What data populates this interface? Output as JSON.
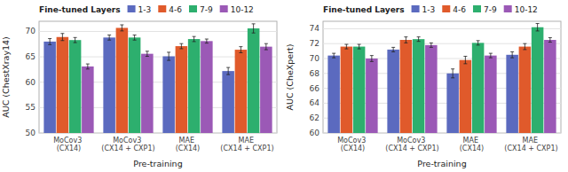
{
  "chart_data": [
    {
      "type": "bar",
      "xlabel": "Pre-training",
      "ylabel": "AUC (ChestXray14)",
      "categories": [
        "MoCov3 (CX14)",
        "MoCov3 (CX14 + CXP1)",
        "MAE (CX14)",
        "MAE (CX14 + CXP1)"
      ],
      "series": [
        {
          "name": "1-3",
          "color": "#5b6abf",
          "values": [
            68.0,
            68.8,
            65.1,
            62.2
          ],
          "errors": [
            0.6,
            0.5,
            0.8,
            0.7
          ]
        },
        {
          "name": "4-6",
          "color": "#e05a2b",
          "values": [
            68.9,
            70.7,
            67.1,
            66.4
          ],
          "errors": [
            0.7,
            0.6,
            0.5,
            0.6
          ]
        },
        {
          "name": "7-9",
          "color": "#2daf6e",
          "values": [
            68.3,
            68.8,
            68.5,
            70.6
          ],
          "errors": [
            0.5,
            0.5,
            0.5,
            0.9
          ]
        },
        {
          "name": "10-12",
          "color": "#9b59b6",
          "values": [
            63.1,
            65.6,
            68.1,
            67.0
          ],
          "errors": [
            0.5,
            0.5,
            0.4,
            0.6
          ]
        }
      ],
      "ylim": [
        50,
        72
      ],
      "yticks": [
        50,
        55,
        60,
        65,
        70
      ],
      "grid": true,
      "legend": "upper left",
      "legend_title": "Fine-tuned Layers"
    },
    {
      "type": "bar",
      "xlabel": "Pre-training",
      "ylabel": "AUC (CheXpert)",
      "categories": [
        "MoCov3 (CX14)",
        "MoCov3 (CX14 + CXP1)",
        "MAE (CX14)",
        "MAE (CX14 + CXP1)"
      ],
      "series": [
        {
          "name": "1-3",
          "color": "#5b6abf",
          "values": [
            70.4,
            71.2,
            68.0,
            70.5
          ],
          "errors": [
            0.3,
            0.3,
            0.6,
            0.4
          ]
        },
        {
          "name": "4-6",
          "color": "#e05a2b",
          "values": [
            71.6,
            72.5,
            69.8,
            71.6
          ],
          "errors": [
            0.3,
            0.4,
            0.5,
            0.4
          ]
        },
        {
          "name": "7-9",
          "color": "#2daf6e",
          "values": [
            71.6,
            72.6,
            72.1,
            74.2
          ],
          "errors": [
            0.3,
            0.3,
            0.3,
            0.5
          ]
        },
        {
          "name": "10-12",
          "color": "#9b59b6",
          "values": [
            70.0,
            71.8,
            70.4,
            72.5
          ],
          "errors": [
            0.4,
            0.3,
            0.3,
            0.3
          ]
        }
      ],
      "ylim": [
        60,
        75
      ],
      "yticks": [
        60,
        62,
        64,
        66,
        68,
        70,
        72,
        74
      ],
      "grid": true,
      "legend": "upper left",
      "legend_title": "Fine-tuned Layers"
    }
  ]
}
